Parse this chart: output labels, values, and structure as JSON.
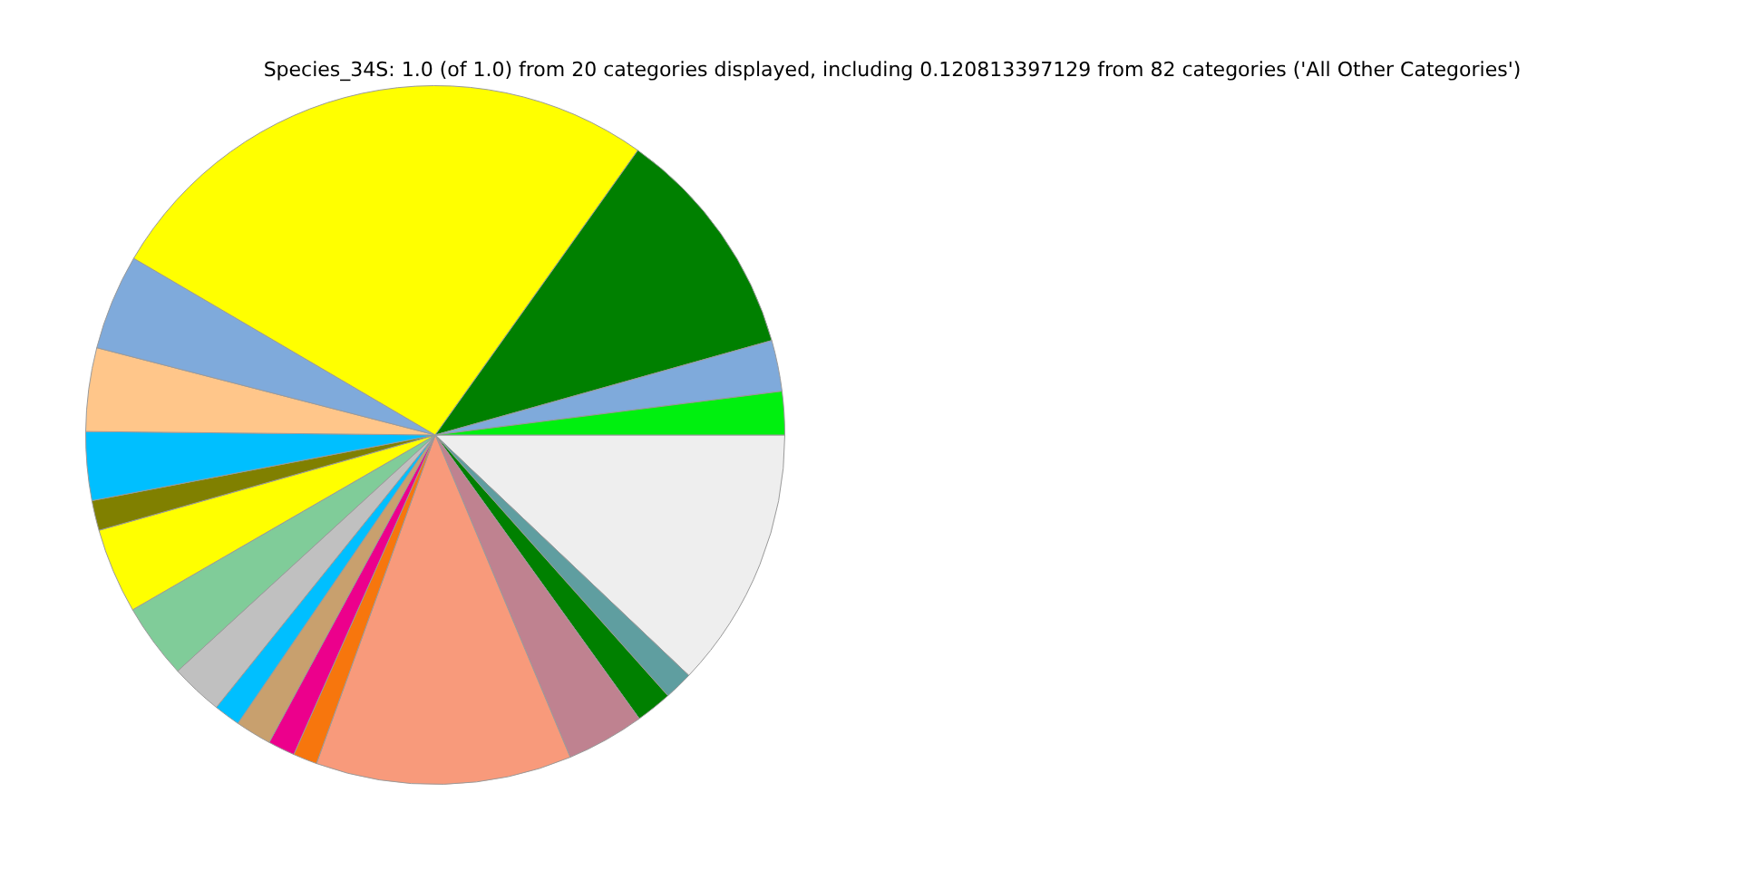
{
  "chart_data": {
    "type": "pie",
    "title": "Species_34S: 1.0 (of 1.0) from 20 categories displayed, including 0.120813397129 from 82 categories ('All Other Categories')",
    "categories": [
      null,
      null,
      null,
      null,
      null,
      null,
      null,
      null,
      null,
      null,
      null,
      null,
      null,
      null,
      null,
      null,
      null,
      null,
      null,
      null
    ],
    "values": [
      2.0,
      2.36,
      10.8,
      26.4,
      4.42,
      3.86,
      3.17,
      1.39,
      3.94,
      3.47,
      2.42,
      1.22,
      1.67,
      1.25,
      1.11,
      11.83,
      3.61,
      1.67,
      1.33,
      12.08
    ],
    "colors": [
      "#00f00f",
      "#7faadb",
      "#008000",
      "#ffff00",
      "#7faadb",
      "#ffc68a",
      "#00bfff",
      "#808000",
      "#ffff00",
      "#80cc99",
      "#c0c0c0",
      "#00bfff",
      "#c8a06e",
      "#ec008c",
      "#f7760d",
      "#f89a7b",
      "#bf8290",
      "#008000",
      "#5f9ea0",
      "#eeeeee"
    ],
    "legend": false
  }
}
